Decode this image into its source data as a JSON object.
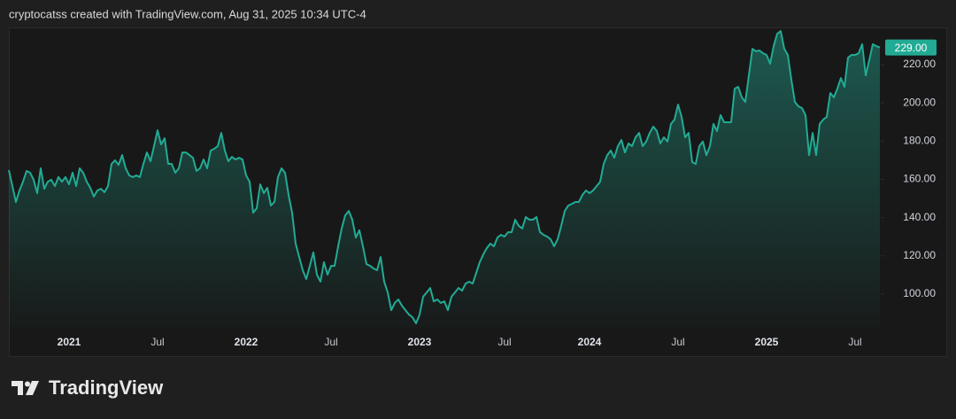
{
  "header": "cryptocatss created with TradingView.com, Aug 31, 2025 10:34 UTC-4",
  "brand": "TradingView",
  "chart_data": {
    "type": "area",
    "color": "#22ab94",
    "grid": false,
    "categories": [
      null,
      null,
      null,
      null,
      null,
      null,
      null,
      null,
      null,
      null,
      null,
      null,
      null,
      null,
      null,
      null,
      null,
      "2021",
      null,
      null,
      null,
      null,
      null,
      null,
      null,
      null,
      null,
      null,
      null,
      null,
      null,
      null,
      null,
      null,
      null,
      null,
      null,
      null,
      null,
      null,
      null,
      null,
      "Jul",
      null,
      null,
      null,
      null,
      null,
      null,
      null,
      null,
      null,
      null,
      null,
      null,
      null,
      null,
      null,
      null,
      null,
      null,
      null,
      null,
      null,
      null,
      null,
      null,
      "2022",
      null,
      null,
      null,
      null,
      null,
      null,
      null,
      null,
      null,
      null,
      null,
      null,
      null,
      null,
      null,
      null,
      null,
      null,
      null,
      null,
      null,
      null,
      null,
      "Jul",
      null,
      null,
      null,
      null,
      null,
      null,
      null,
      null,
      null,
      null,
      null,
      null,
      null,
      null,
      null,
      null,
      null,
      null,
      null,
      null,
      null,
      null,
      null,
      null,
      "2023",
      null,
      null,
      null,
      null,
      null,
      null,
      null,
      null,
      null,
      null,
      null,
      null,
      null,
      null,
      null,
      null,
      null,
      null,
      null,
      null,
      null,
      null,
      null,
      "Jul",
      null,
      null,
      null,
      null,
      null,
      null,
      null,
      null,
      null,
      null,
      null,
      null,
      null,
      null,
      null,
      null,
      null,
      null,
      null,
      null,
      null,
      null,
      null,
      "2024",
      null,
      null,
      null,
      null,
      null,
      null,
      null,
      null,
      null,
      null,
      null,
      null,
      null,
      null,
      null,
      null,
      null,
      null,
      null,
      null,
      null,
      null,
      null,
      null,
      "Jul",
      null,
      null,
      null,
      null,
      null,
      null,
      null,
      null,
      null,
      null,
      null,
      null,
      null,
      null,
      null,
      null,
      null,
      null,
      null,
      null,
      null,
      null,
      null,
      null,
      "2025",
      null,
      null,
      null,
      null,
      null,
      null,
      null,
      null,
      null,
      null,
      null,
      null,
      null,
      null,
      null,
      null,
      null,
      null,
      null,
      null,
      null,
      null,
      null,
      null,
      "Jul",
      null,
      null,
      null,
      null,
      null,
      null,
      null
    ],
    "values": [
      164.9,
      156.5,
      148.2,
      154.2,
      158.8,
      164.4,
      163.5,
      159.8,
      152.8,
      165.8,
      155.1,
      158.8,
      159.8,
      156.5,
      161.2,
      158.8,
      161.2,
      157.4,
      163.5,
      156.5,
      165.8,
      163.5,
      158.8,
      155.6,
      151.0,
      154.2,
      155.1,
      153.3,
      156.5,
      168.1,
      170.0,
      167.6,
      172.7,
      165.8,
      162.1,
      161.2,
      162.1,
      161.2,
      168.1,
      174.1,
      169.5,
      177.4,
      185.7,
      178.3,
      181.5,
      168.1,
      168.1,
      163.5,
      165.8,
      174.1,
      174.1,
      172.7,
      171.3,
      164.4,
      165.8,
      170.4,
      165.8,
      175.1,
      176.0,
      177.4,
      184.3,
      175.1,
      169.5,
      171.8,
      170.4,
      171.3,
      170.4,
      162.1,
      158.8,
      142.6,
      144.9,
      157.4,
      152.8,
      155.6,
      146.3,
      148.2,
      161.2,
      165.8,
      163.5,
      151.9,
      142.6,
      126.4,
      119.4,
      112.5,
      107.9,
      114.8,
      121.8,
      110.2,
      106.5,
      116.7,
      110.2,
      114.8,
      114.8,
      125.0,
      134.3,
      141.2,
      143.5,
      138.9,
      129.6,
      133.4,
      125.0,
      115.7,
      114.8,
      113.4,
      112.5,
      119.4,
      106.5,
      100.9,
      91.6,
      95.4,
      97.2,
      94.0,
      91.6,
      89.3,
      87.9,
      84.7,
      89.3,
      98.6,
      100.9,
      103.2,
      96.2,
      97.2,
      95.4,
      96.2,
      91.6,
      98.6,
      100.9,
      103.2,
      101.8,
      105.5,
      106.5,
      105.5,
      111.1,
      116.7,
      120.8,
      124.1,
      126.4,
      125.0,
      129.6,
      131.0,
      130.1,
      132.4,
      132.4,
      138.9,
      135.7,
      134.3,
      140.3,
      138.9,
      138.9,
      140.3,
      132.4,
      131.0,
      130.1,
      128.7,
      125.0,
      128.7,
      135.7,
      143.5,
      146.3,
      147.2,
      148.2,
      148.2,
      151.9,
      154.2,
      152.8,
      154.2,
      156.5,
      158.8,
      168.1,
      172.7,
      175.1,
      171.3,
      177.4,
      180.6,
      174.1,
      178.8,
      177.4,
      182.0,
      184.3,
      177.4,
      179.8,
      184.3,
      187.6,
      185.3,
      178.8,
      182.0,
      179.8,
      189.0,
      191.3,
      199.1,
      192.7,
      182.0,
      184.3,
      169.0,
      168.1,
      177.4,
      179.8,
      172.7,
      177.4,
      189.0,
      185.3,
      193.6,
      189.9,
      189.9,
      189.9,
      207.5,
      208.4,
      202.9,
      200.5,
      214.4,
      228.3,
      227.0,
      227.4,
      226.0,
      225.1,
      220.5,
      229.7,
      236.2,
      237.6,
      228.3,
      225.1,
      212.1,
      200.5,
      198.2,
      197.3,
      193.6,
      172.7,
      184.3,
      172.7,
      189.0,
      191.3,
      192.7,
      205.2,
      202.9,
      207.5,
      213.0,
      208.4,
      223.7,
      225.1,
      225.1,
      226.0,
      230.7,
      214.4,
      222.3,
      230.7,
      229.7,
      229.0
    ],
    "ylim": [
      82.4,
      239
    ],
    "yticks": [
      {
        "value": 100,
        "label": "100.00"
      },
      {
        "value": 120,
        "label": "120.00"
      },
      {
        "value": 140,
        "label": "140.00"
      },
      {
        "value": 160,
        "label": "160.00"
      },
      {
        "value": 180,
        "label": "180.00"
      },
      {
        "value": 200,
        "label": "200.00"
      },
      {
        "value": 220,
        "label": "220.00"
      }
    ],
    "price_label": {
      "value": 229,
      "label": "229.00"
    }
  }
}
